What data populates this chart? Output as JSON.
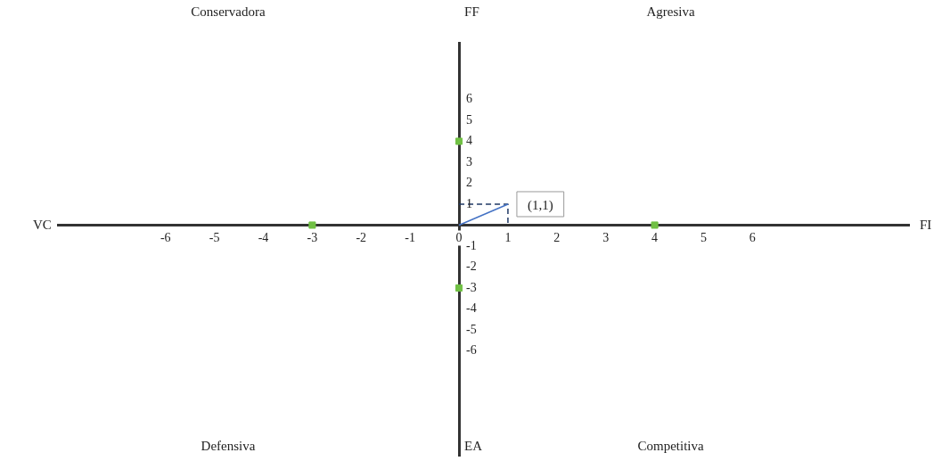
{
  "chart_data": {
    "type": "line",
    "xlim": [
      -8.2,
      9.2
    ],
    "ylim": [
      -11,
      8.7
    ],
    "xticks": [
      -6,
      -5,
      -4,
      -3,
      -2,
      -1,
      0,
      1,
      2,
      3,
      4,
      5,
      6
    ],
    "yticks": [
      -6,
      -5,
      -4,
      -3,
      -2,
      -1,
      1,
      2,
      3,
      4,
      5,
      6
    ],
    "grid": false,
    "legend": false,
    "series": [
      {
        "type": "line",
        "x": [
          0,
          1
        ],
        "values": [
          0,
          1
        ],
        "color": "#4472c4",
        "line_style": "solid",
        "marker": "none"
      },
      {
        "type": "line",
        "x": [
          0,
          1,
          1
        ],
        "values": [
          1,
          1,
          0
        ],
        "color": "#1f3864",
        "line_style": "dashed",
        "marker": "none"
      },
      {
        "type": "scatter",
        "x": [
          -3,
          4,
          0,
          0
        ],
        "values": [
          0,
          0,
          4,
          -3
        ],
        "color": "#70c044",
        "marker": "square"
      }
    ],
    "annotations": [
      "Conservadora",
      "Agresiva",
      "Defensiva",
      "Competitiva",
      "VC",
      "FI",
      "FF",
      "EA",
      {
        "text": "(1,1)",
        "x": 1,
        "y": 1
      }
    ]
  }
}
